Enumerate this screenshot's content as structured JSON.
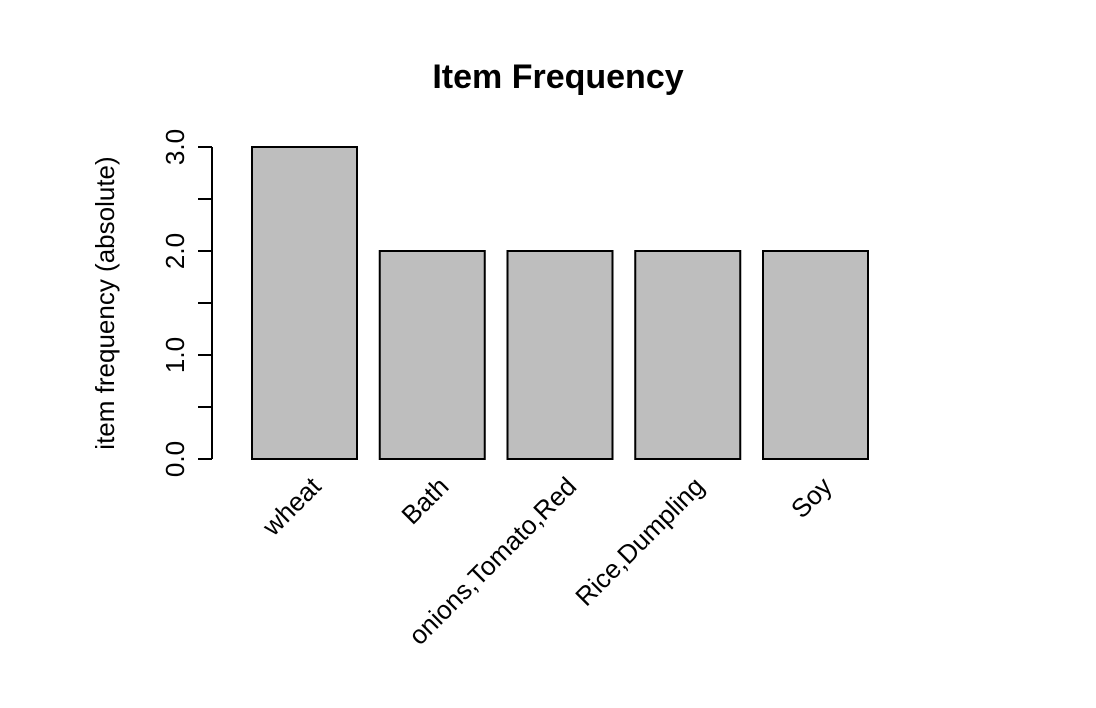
{
  "chart_data": {
    "type": "bar",
    "title": "Item Frequency",
    "xlabel": "",
    "ylabel": "item frequency (absolute)",
    "categories": [
      "wheat",
      "Bath",
      "onions,Tomato,Red",
      "Rice,Dumpling",
      "Soy"
    ],
    "values": [
      3,
      2,
      2,
      2,
      2
    ],
    "ylim": [
      0,
      3
    ],
    "yticks": [
      0,
      0.5,
      1,
      1.5,
      2,
      2.5,
      3
    ],
    "ytick_labels": [
      "0.0",
      "",
      "1.0",
      "",
      "2.0",
      "",
      "3.0"
    ],
    "grid": false,
    "bar_color": "#bebebe",
    "edge_color": "#000000"
  }
}
